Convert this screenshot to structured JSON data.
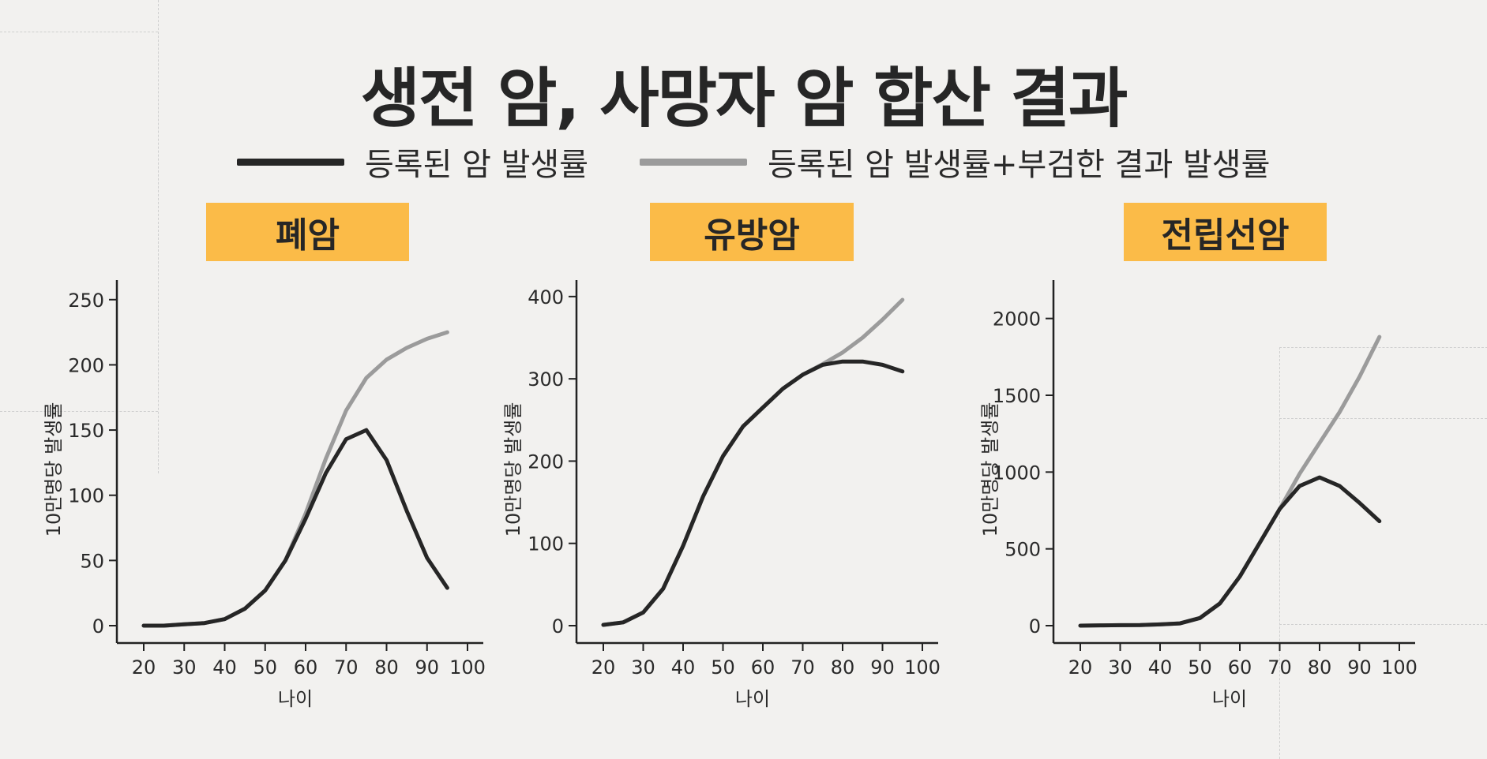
{
  "title": "생전 암, 사망자 암 합산 결과",
  "legend": [
    {
      "label": "등록된 암 발생률",
      "color": "#262626"
    },
    {
      "label": "등록된 암 발생률+부검한 결과 발생률",
      "color": "#9b9b9b"
    }
  ],
  "colors": {
    "accent": "#fbbb48",
    "registered": "#262626",
    "combined": "#9b9b9b"
  },
  "chart_data": [
    {
      "type": "line",
      "title": "폐암",
      "xlabel": "나이",
      "ylabel": "10만명당 발생률",
      "xlim": [
        20,
        100
      ],
      "ylim": [
        0,
        265
      ],
      "xticks": [
        20,
        30,
        40,
        50,
        60,
        70,
        80,
        90,
        100
      ],
      "yticks": [
        0,
        50,
        100,
        150,
        200,
        250
      ],
      "x": [
        20,
        25,
        30,
        35,
        40,
        45,
        50,
        55,
        60,
        65,
        70,
        75,
        80,
        85,
        90,
        95
      ],
      "series": [
        {
          "name": "등록된 암 발생률",
          "values": [
            0,
            0,
            1,
            2,
            5,
            13,
            27,
            50,
            82,
            117,
            143,
            150,
            127,
            88,
            52,
            29
          ]
        },
        {
          "name": "등록된 암 발생률+부검한 결과 발생률",
          "values": [
            0,
            0,
            1,
            2,
            5,
            13,
            27,
            50,
            86,
            128,
            165,
            190,
            204,
            213,
            220,
            225
          ]
        }
      ]
    },
    {
      "type": "line",
      "title": "유방암",
      "xlabel": "나이",
      "ylabel": "10만명당 발생률",
      "xlim": [
        20,
        100
      ],
      "ylim": [
        0,
        420
      ],
      "xticks": [
        20,
        30,
        40,
        50,
        60,
        70,
        80,
        90,
        100
      ],
      "yticks": [
        0,
        100,
        200,
        300,
        400
      ],
      "x": [
        20,
        25,
        30,
        35,
        40,
        45,
        50,
        55,
        60,
        65,
        70,
        75,
        80,
        85,
        90,
        95
      ],
      "series": [
        {
          "name": "등록된 암 발생률",
          "values": [
            1,
            4,
            16,
            45,
            97,
            157,
            206,
            242,
            265,
            288,
            305,
            317,
            321,
            321,
            317,
            309
          ]
        },
        {
          "name": "등록된 암 발생률+부검한 결과 발생률",
          "values": [
            1,
            4,
            16,
            45,
            97,
            157,
            206,
            242,
            265,
            288,
            305,
            318,
            332,
            350,
            372,
            396
          ]
        }
      ]
    },
    {
      "type": "line",
      "title": "전립선암",
      "xlabel": "나이",
      "ylabel": "10만명당 발생률",
      "xlim": [
        20,
        100
      ],
      "ylim": [
        0,
        2250
      ],
      "xticks": [
        20,
        30,
        40,
        50,
        60,
        70,
        80,
        90,
        100
      ],
      "yticks": [
        0,
        500,
        1000,
        1500,
        2000
      ],
      "x": [
        20,
        25,
        30,
        35,
        40,
        45,
        50,
        55,
        60,
        65,
        70,
        75,
        80,
        85,
        90,
        95
      ],
      "series": [
        {
          "name": "등록된 암 발생률",
          "values": [
            0,
            2,
            3,
            4,
            8,
            15,
            50,
            145,
            320,
            540,
            760,
            910,
            965,
            910,
            800,
            680
          ]
        },
        {
          "name": "등록된 암 발생률+부검한 결과 발생률",
          "values": [
            0,
            2,
            3,
            4,
            8,
            15,
            50,
            145,
            320,
            540,
            760,
            990,
            1190,
            1390,
            1620,
            1880
          ]
        }
      ]
    }
  ]
}
